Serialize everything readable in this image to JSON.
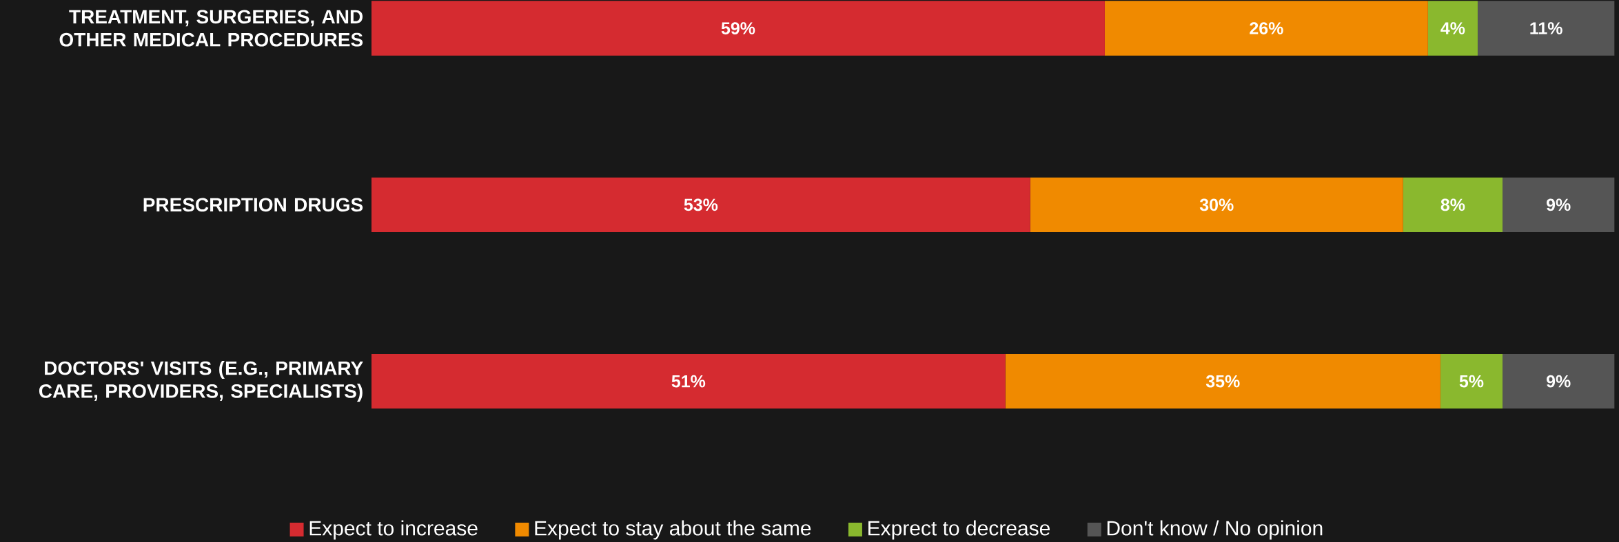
{
  "chart_data": {
    "type": "bar",
    "orientation": "horizontal",
    "stacked": true,
    "legend": "bottom",
    "categories": [
      "TREATMENT, SURGERIES, AND OTHER MEDICAL PROCEDURES",
      "PRESCRIPTION DRUGS",
      "DOCTORS' VISITS (E.G., PRIMARY CARE, PROVIDERS, SPECIALISTS)"
    ],
    "series": [
      {
        "name": "Expect to increase",
        "color": "#d52b30",
        "values": [
          59,
          53,
          51
        ],
        "value_labels": [
          "59%",
          "53%",
          "51%"
        ]
      },
      {
        "name": "Expect to stay about the same",
        "color": "#f08a00",
        "values": [
          26,
          30,
          35
        ],
        "value_labels": [
          "26%",
          "30%",
          "35%"
        ]
      },
      {
        "name": "Exprect to decrease",
        "color": "#8ab82e",
        "values": [
          4,
          8,
          5
        ],
        "value_labels": [
          "4%",
          "8%",
          "5%"
        ]
      },
      {
        "name": "Don't know / No opinion",
        "color": "#555555",
        "values": [
          11,
          9,
          9
        ],
        "value_labels": [
          "11%",
          "9%",
          "9%"
        ]
      }
    ]
  }
}
